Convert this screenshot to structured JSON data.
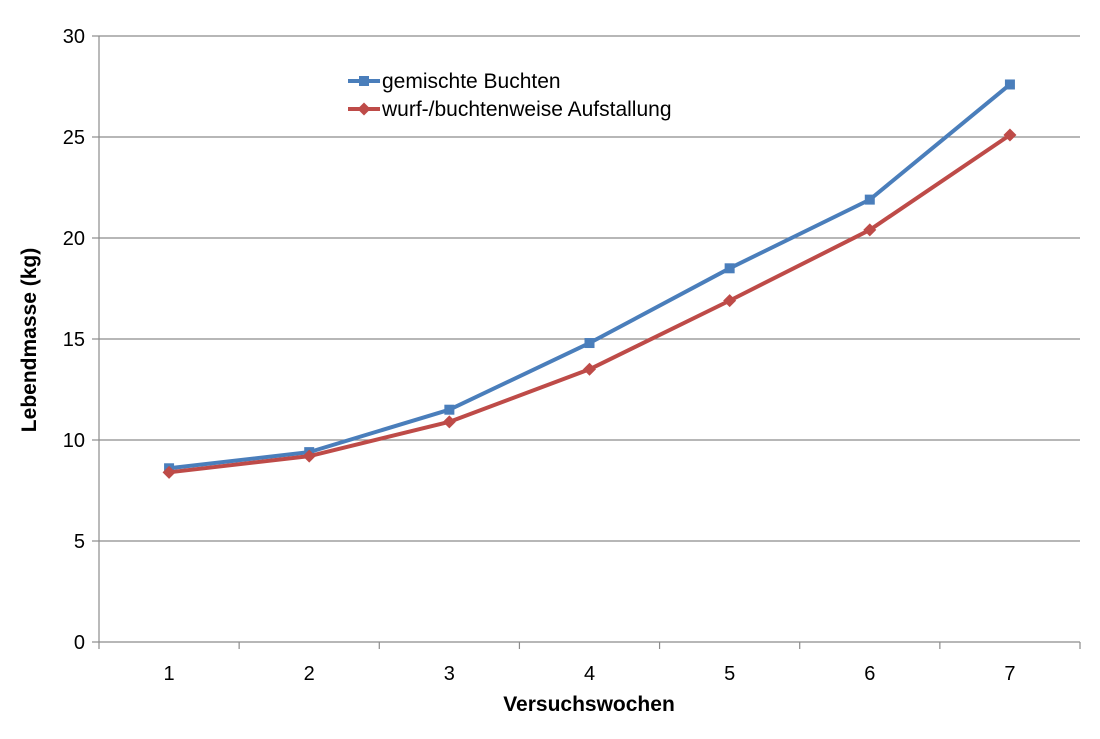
{
  "chart_data": {
    "type": "line",
    "title": "",
    "xlabel": "Versuchswochen",
    "ylabel": "Lebendmasse (kg)",
    "categories": [
      "1",
      "2",
      "3",
      "4",
      "5",
      "6",
      "7"
    ],
    "ylim": [
      0,
      30
    ],
    "yticks": [
      "0",
      "5",
      "10",
      "15",
      "20",
      "25",
      "30"
    ],
    "grid": true,
    "legend_position": "top-center",
    "series": [
      {
        "name": "gemischte Buchten",
        "color": "#4a7ebb",
        "marker": "square",
        "values": [
          8.6,
          9.4,
          11.5,
          14.8,
          18.5,
          21.9,
          27.6
        ]
      },
      {
        "name": "wurf-/buchtenweise Aufstallung",
        "color": "#be4b48",
        "marker": "diamond",
        "values": [
          8.4,
          9.2,
          10.9,
          13.5,
          16.9,
          20.4,
          25.1
        ]
      }
    ]
  }
}
